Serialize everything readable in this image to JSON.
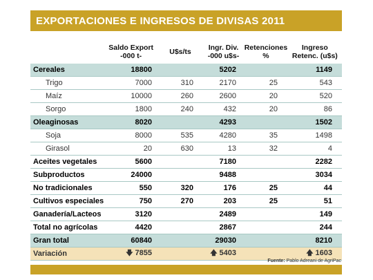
{
  "title": "EXPORTACIONES E INGRESOS DE DIVISAS 2011",
  "headers": [
    {
      "l1": "Saldo Export",
      "l2": "-000 t-"
    },
    {
      "l1": "U$s/ts",
      "l2": ""
    },
    {
      "l1": "Ingr. Div.",
      "l2": "-000 u$s-"
    },
    {
      "l1": "Retenciones",
      "l2": "%"
    },
    {
      "l1": "Ingreso",
      "l2": "Retenc. (u$s)"
    }
  ],
  "rows": [
    {
      "type": "group",
      "name": "Cereales",
      "cells": [
        "18800",
        "",
        "5202",
        "",
        "1149"
      ]
    },
    {
      "type": "sub",
      "name": "Trigo",
      "cells": [
        "7000",
        "310",
        "2170",
        "25",
        "543"
      ]
    },
    {
      "type": "sub",
      "name": "Maíz",
      "cells": [
        "10000",
        "260",
        "2600",
        "20",
        "520"
      ]
    },
    {
      "type": "sub",
      "name": "Sorgo",
      "cells": [
        "1800",
        "240",
        "432",
        "20",
        "86"
      ]
    },
    {
      "type": "group",
      "name": "Oleaginosas",
      "cells": [
        "8020",
        "",
        "4293",
        "",
        "1502"
      ]
    },
    {
      "type": "sub",
      "name": "Soja",
      "cells": [
        "8000",
        "535",
        "4280",
        "35",
        "1498"
      ]
    },
    {
      "type": "sub",
      "name": "Girasol",
      "cells": [
        "20",
        "630",
        "13",
        "32",
        "4"
      ]
    },
    {
      "type": "bold",
      "name": "Aceites vegetales",
      "cells": [
        "5600",
        "",
        "7180",
        "",
        "2282"
      ]
    },
    {
      "type": "bold",
      "name": "Subproductos",
      "cells": [
        "24000",
        "",
        "9488",
        "",
        "3034"
      ]
    },
    {
      "type": "bold",
      "name": " No tradicionales",
      "cells": [
        "550",
        "320",
        "176",
        "25",
        "44"
      ]
    },
    {
      "type": "bold",
      "name": "Cultivos especiales",
      "cells": [
        "750",
        "270",
        "203",
        "25",
        "51"
      ]
    },
    {
      "type": "bold",
      "name": "Ganadería/Lacteos",
      "cells": [
        "3120",
        "",
        "2489",
        "",
        "149"
      ]
    },
    {
      "type": "bold",
      "name": "Total no agrícolas",
      "cells": [
        "4420",
        "",
        "2867",
        "",
        "244"
      ]
    },
    {
      "type": "total",
      "name": "Gran total",
      "cells": [
        "60840",
        "",
        "29030",
        "",
        "8210"
      ]
    }
  ],
  "variation": {
    "name": "Variación",
    "saldo": "7855",
    "ingr": "5403",
    "ingreso": "1603",
    "down_icon": "arrow-down-icon",
    "up_icon": "arrow-up-icon"
  },
  "source_label": "Fuente:",
  "source_text": "Pablo Adreani de AgriPac",
  "colors": {
    "gold": "#c9a227",
    "teal": "#c5ddda",
    "tan": "#f5e2b8"
  }
}
